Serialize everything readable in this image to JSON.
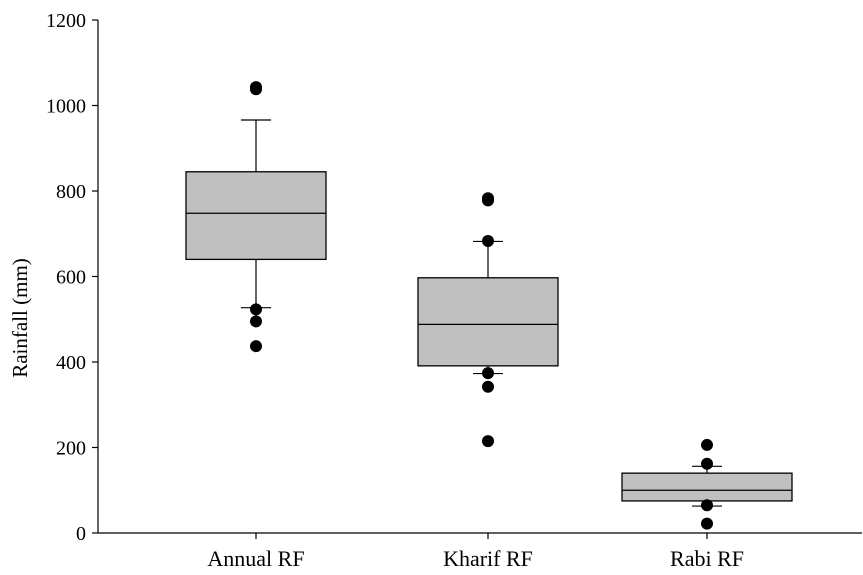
{
  "chart_data": {
    "type": "box",
    "title": "",
    "xlabel": "",
    "ylabel": "Rainfall (mm)",
    "ylim": [
      0,
      1200
    ],
    "yticks": [
      0,
      200,
      400,
      600,
      800,
      1000,
      1200
    ],
    "yticks_labels": [
      "0",
      "200",
      "400",
      "600",
      "800",
      "1000",
      "1200"
    ],
    "grid": false,
    "legend": "none",
    "categories": [
      "Annual RF",
      "Kharif RF",
      "Rabi RF"
    ],
    "box_fill": "#c0c0c0",
    "outlier_color": "#000000",
    "boxes": [
      {
        "category": "Annual RF",
        "whisker_low": 527,
        "q1": 640,
        "median": 748,
        "q3": 845,
        "whisker_high": 966,
        "outliers": [
          1043,
          1038,
          523,
          495,
          437
        ]
      },
      {
        "category": "Kharif RF",
        "whisker_low": 373,
        "q1": 391,
        "median": 488,
        "q3": 597,
        "whisker_high": 682,
        "outliers": [
          783,
          778,
          683,
          374,
          342,
          215
        ]
      },
      {
        "category": "Rabi RF",
        "whisker_low": 63,
        "q1": 75,
        "median": 100,
        "q3": 140,
        "whisker_high": 156,
        "outliers": [
          206,
          162,
          65,
          22
        ]
      }
    ]
  }
}
